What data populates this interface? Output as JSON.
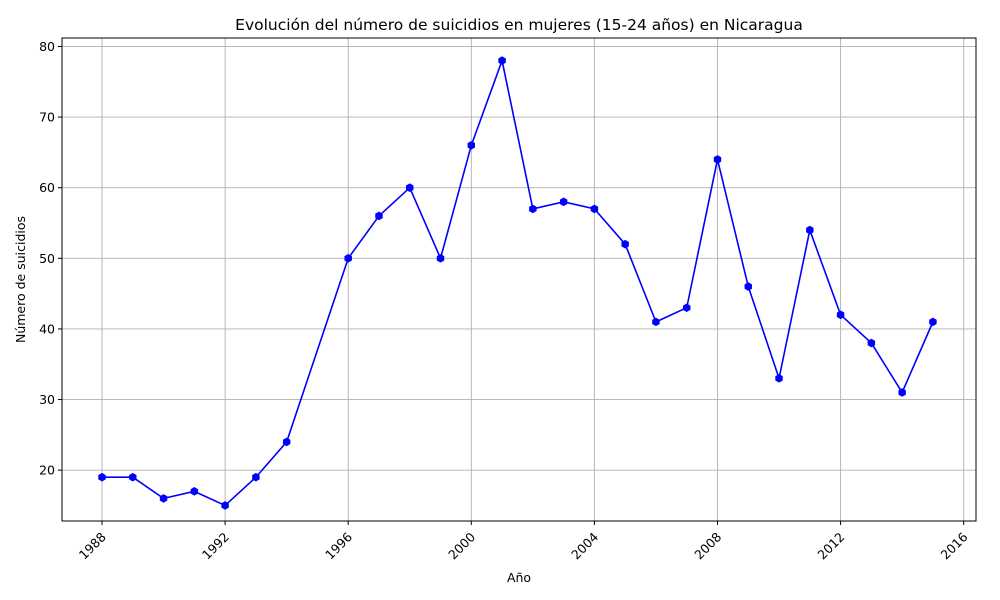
{
  "chart_data": {
    "type": "line",
    "title": "Evolución del número de suicidios en mujeres (15-24 años) en Nicaragua",
    "xlabel": "Año",
    "ylabel": "Número de suicidios",
    "x_ticks": [
      "1988",
      "1992",
      "1996",
      "2000",
      "2004",
      "2008",
      "2012",
      "2016"
    ],
    "y_ticks": [
      "20",
      "30",
      "40",
      "50",
      "60",
      "70",
      "80"
    ],
    "xlim": [
      1986.7,
      2016.4
    ],
    "ylim": [
      12.8,
      81.2
    ],
    "grid": true,
    "color": "#0000ff",
    "series": [
      {
        "x": [
          1988,
          1989,
          1990,
          1991,
          1992,
          1993,
          1994,
          1996,
          1997,
          1998,
          1999,
          2000,
          2001,
          2002,
          2003,
          2004,
          2005,
          2006,
          2007,
          2008,
          2009,
          2010,
          2011,
          2012,
          2013,
          2014,
          2015
        ],
        "values": [
          19,
          19,
          16,
          17,
          15,
          19,
          24,
          50,
          56,
          60,
          50,
          66,
          78,
          57,
          58,
          57,
          52,
          41,
          43,
          64,
          46,
          33,
          54,
          42,
          38,
          31,
          41
        ]
      }
    ]
  }
}
